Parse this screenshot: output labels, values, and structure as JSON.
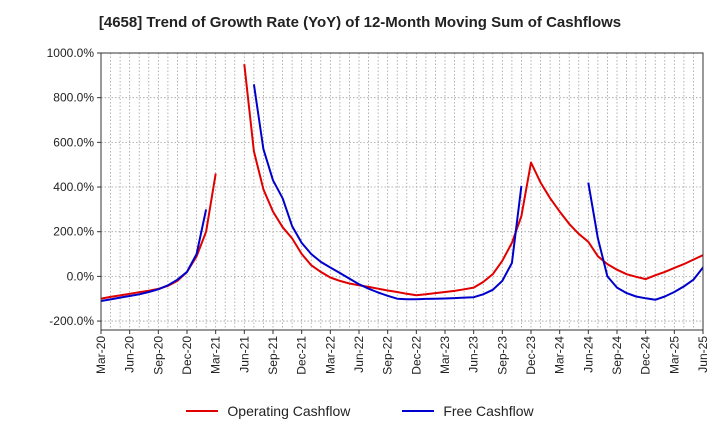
{
  "chart_data": {
    "type": "line",
    "title": "[4658]  Trend of Growth Rate (YoY) of 12-Month Moving Sum of Cashflows",
    "xlabel": "",
    "ylabel": "",
    "ylim": [
      -240,
      1000
    ],
    "y_ticks": [
      -200,
      0,
      200,
      400,
      600,
      800,
      1000
    ],
    "y_tick_labels": [
      "-200.0%",
      "0.0%",
      "200.0%",
      "400.0%",
      "600.0%",
      "800.0%",
      "1000.0%"
    ],
    "x_tick_labels": [
      "Mar-20",
      "Jun-20",
      "Sep-20",
      "Dec-20",
      "Mar-21",
      "Jun-21",
      "Sep-21",
      "Dec-21",
      "Mar-22",
      "Jun-22",
      "Sep-22",
      "Dec-22",
      "Mar-23",
      "Jun-23",
      "Sep-23",
      "Dec-23",
      "Mar-24",
      "Jun-24",
      "Sep-24",
      "Dec-24",
      "Mar-25",
      "Jun-25"
    ],
    "grid": true,
    "legend_position": "bottom",
    "series": [
      {
        "name": "Operating Cashflow",
        "color": "#e00000",
        "values": [
          -100,
          -92,
          -85,
          -78,
          -71,
          -64,
          -56,
          -42,
          -20,
          20,
          90,
          200,
          460,
          null,
          null,
          950,
          560,
          390,
          290,
          220,
          170,
          100,
          50,
          20,
          -5,
          -20,
          -32,
          -40,
          -47,
          -55,
          -63,
          -70,
          -78,
          -84,
          -80,
          -75,
          -70,
          -65,
          -58,
          -50,
          -25,
          10,
          70,
          150,
          270,
          510,
          420,
          350,
          290,
          235,
          190,
          155,
          90,
          55,
          30,
          10,
          -2,
          -12,
          5,
          20,
          38,
          55,
          75,
          95,
          107
        ],
        "segments": [
          [
            0,
            12
          ],
          [
            15,
            64
          ]
        ]
      },
      {
        "name": "Free Cashflow",
        "color": "#0000cc",
        "values": [
          -110,
          -103,
          -95,
          -88,
          -80,
          -70,
          -58,
          -40,
          -15,
          20,
          100,
          300,
          null,
          null,
          null,
          null,
          860,
          570,
          430,
          350,
          225,
          150,
          100,
          65,
          40,
          15,
          -10,
          -35,
          -55,
          -72,
          -87,
          -100,
          -102,
          -102,
          -101,
          -100,
          -99,
          -97,
          -95,
          -93,
          -80,
          -60,
          -20,
          60,
          405,
          null,
          null,
          null,
          null,
          null,
          null,
          420,
          170,
          0,
          -50,
          -75,
          -90,
          -98,
          -105,
          -90,
          -70,
          -45,
          -15,
          40,
          140
        ],
        "segments": [
          [
            0,
            11
          ],
          [
            16,
            44
          ],
          [
            51,
            64
          ]
        ]
      }
    ]
  }
}
